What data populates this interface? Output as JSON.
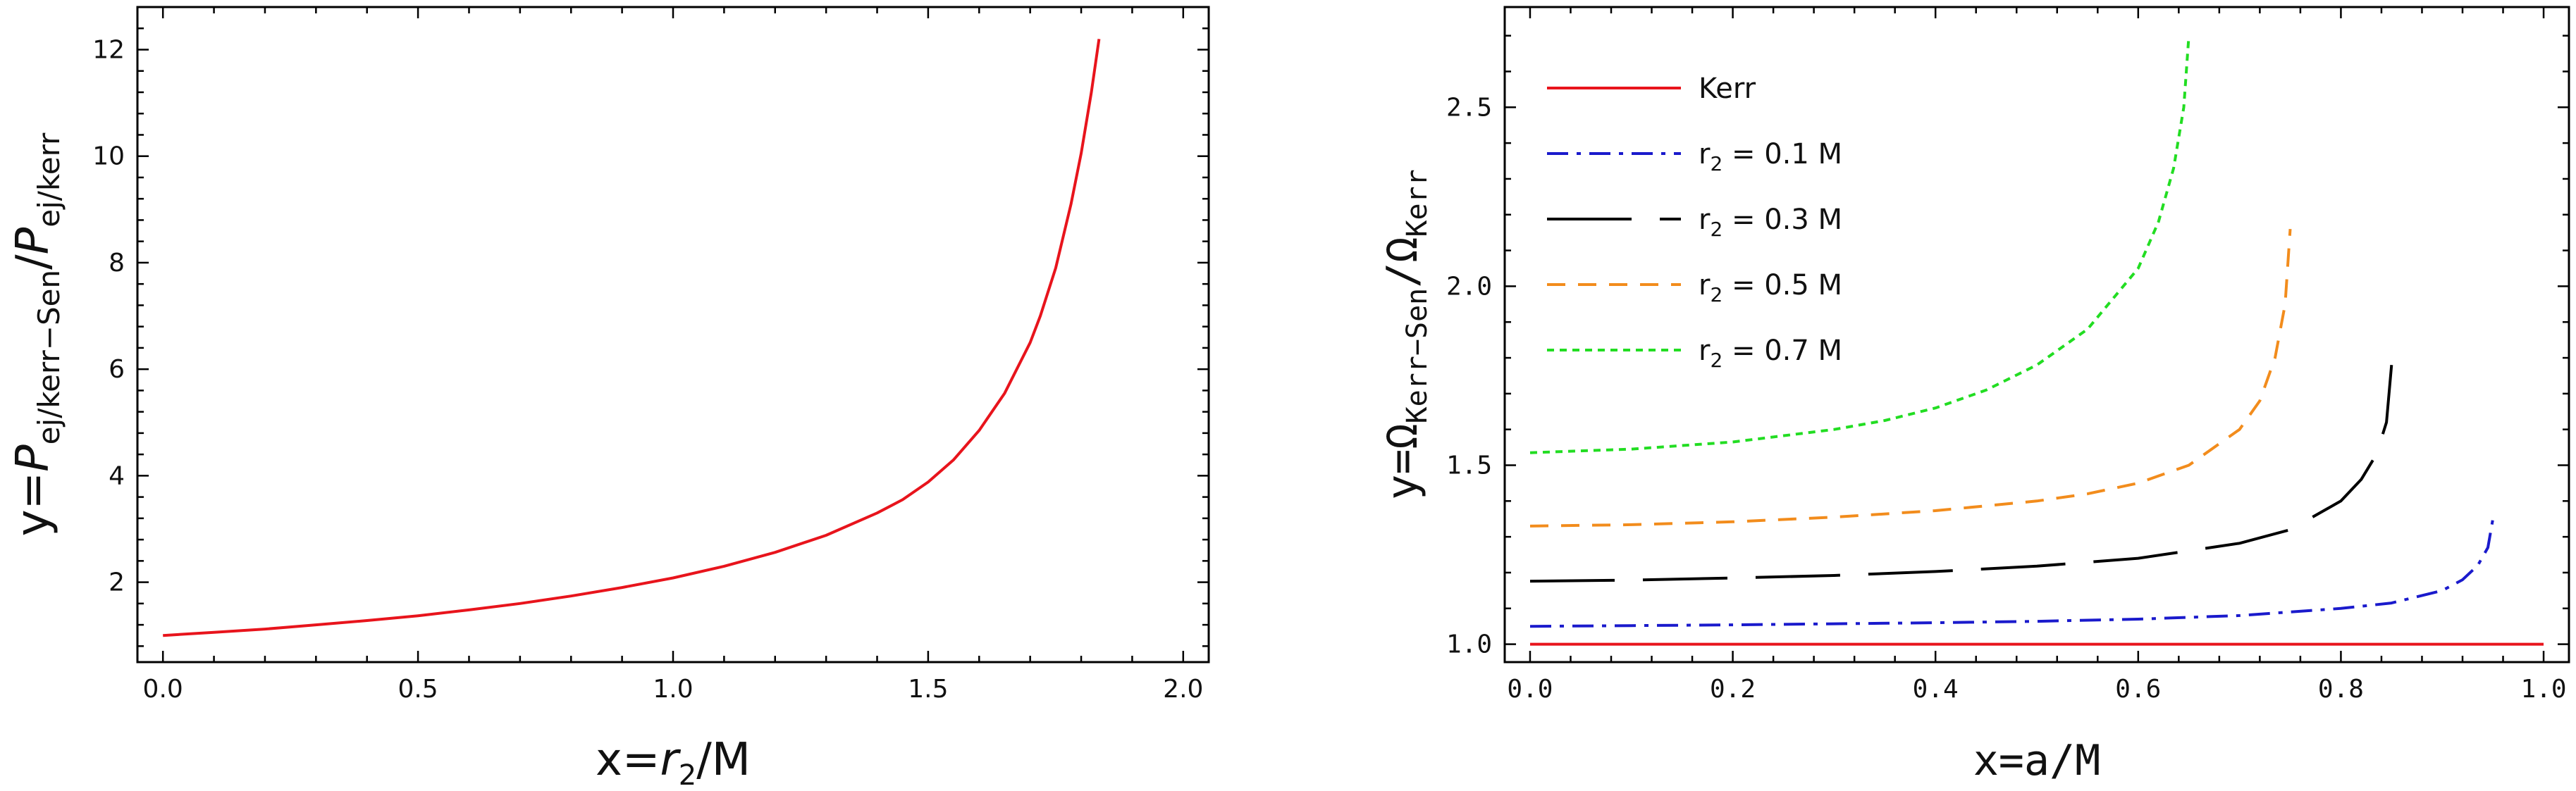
{
  "chart_data": [
    {
      "type": "line",
      "xlabel": {
        "main": "x=",
        "italic": "r",
        "sub": "2",
        "tail": "/M"
      },
      "ylabel": {
        "main": "y=",
        "italic1": "P",
        "sub1": "ej/kerr−Sen",
        "slash": "/",
        "italic2": "P",
        "sub2": "ej/kerr"
      },
      "xlim": [
        -0.05,
        2.05
      ],
      "ylim": [
        0.5,
        12.8
      ],
      "xticks": [
        0.0,
        0.5,
        1.0,
        1.5,
        2.0
      ],
      "xtick_labels": [
        "0.0",
        "0.5",
        "1.0",
        "1.5",
        "2.0"
      ],
      "yticks": [
        2,
        4,
        6,
        8,
        10,
        12
      ],
      "ytick_labels": [
        "2",
        "4",
        "6",
        "8",
        "10",
        "12"
      ],
      "grid": false,
      "series": [
        {
          "color": "#e8141c",
          "style": "solid",
          "x": [
            0.0,
            0.1,
            0.2,
            0.3,
            0.4,
            0.5,
            0.6,
            0.7,
            0.8,
            0.9,
            1.0,
            1.1,
            1.2,
            1.3,
            1.4,
            1.45,
            1.5,
            1.55,
            1.6,
            1.65,
            1.7,
            1.72,
            1.75,
            1.78,
            1.8,
            1.82,
            1.835
          ],
          "y": [
            1.0,
            1.06,
            1.12,
            1.2,
            1.28,
            1.37,
            1.48,
            1.6,
            1.74,
            1.9,
            2.08,
            2.3,
            2.56,
            2.88,
            3.3,
            3.55,
            3.88,
            4.3,
            4.85,
            5.55,
            6.5,
            7.0,
            7.9,
            9.1,
            10.05,
            11.2,
            12.2
          ]
        }
      ]
    },
    {
      "type": "line",
      "xlabel": "x=a/M",
      "ylabel": {
        "main": "y=Ω",
        "sub1": "Kerr−Sen",
        "slash": "/Ω",
        "sub2": "Kerr"
      },
      "xlim": [
        -0.025,
        1.025
      ],
      "ylim": [
        0.95,
        2.78
      ],
      "xticks": [
        0.0,
        0.2,
        0.4,
        0.6,
        0.8,
        1.0
      ],
      "xtick_labels": [
        "0.0",
        "0.2",
        "0.4",
        "0.6",
        "0.8",
        "1.0"
      ],
      "yticks": [
        1.0,
        1.5,
        2.0,
        2.5
      ],
      "ytick_labels": [
        "1.0",
        "1.5",
        "2.0",
        "2.5"
      ],
      "grid": false,
      "legend_position": "top-left",
      "series": [
        {
          "name": "Kerr",
          "sub": "",
          "suffix": "",
          "color": "#e8141c",
          "style": "solid",
          "x": [
            0.0,
            1.0
          ],
          "y": [
            1.0,
            1.0
          ]
        },
        {
          "name": "r",
          "sub": "2",
          "suffix": " = 0.1 M",
          "color": "#1a1acc",
          "style": "dashdot",
          "x": [
            0.0,
            0.1,
            0.2,
            0.3,
            0.4,
            0.5,
            0.6,
            0.7,
            0.8,
            0.85,
            0.9,
            0.92,
            0.935,
            0.945,
            0.95
          ],
          "y": [
            1.05,
            1.052,
            1.054,
            1.057,
            1.06,
            1.064,
            1.07,
            1.08,
            1.1,
            1.115,
            1.15,
            1.18,
            1.22,
            1.27,
            1.35
          ]
        },
        {
          "name": "r",
          "sub": "2",
          "suffix": " = 0.3 M",
          "color": "#000000",
          "style": "longdash",
          "x": [
            0.0,
            0.1,
            0.2,
            0.3,
            0.4,
            0.5,
            0.6,
            0.7,
            0.75,
            0.8,
            0.82,
            0.835,
            0.845,
            0.85
          ],
          "y": [
            1.176,
            1.179,
            1.185,
            1.192,
            1.203,
            1.218,
            1.24,
            1.282,
            1.32,
            1.4,
            1.46,
            1.53,
            1.62,
            1.78
          ]
        },
        {
          "name": "r",
          "sub": "2",
          "suffix": " = 0.5 M",
          "color": "#f28c1c",
          "style": "dashed",
          "x": [
            0.0,
            0.1,
            0.2,
            0.3,
            0.4,
            0.5,
            0.55,
            0.6,
            0.65,
            0.7,
            0.72,
            0.735,
            0.745,
            0.75
          ],
          "y": [
            1.33,
            1.334,
            1.342,
            1.355,
            1.373,
            1.4,
            1.42,
            1.45,
            1.5,
            1.6,
            1.68,
            1.8,
            1.95,
            2.16
          ]
        },
        {
          "name": "r",
          "sub": "2",
          "suffix": " = 0.7 M",
          "color": "#22dd22",
          "style": "dotted",
          "x": [
            0.0,
            0.1,
            0.2,
            0.3,
            0.35,
            0.4,
            0.45,
            0.5,
            0.55,
            0.6,
            0.62,
            0.635,
            0.645,
            0.65
          ],
          "y": [
            1.535,
            1.545,
            1.565,
            1.6,
            1.625,
            1.66,
            1.71,
            1.78,
            1.88,
            2.05,
            2.18,
            2.33,
            2.5,
            2.7
          ]
        }
      ]
    }
  ]
}
